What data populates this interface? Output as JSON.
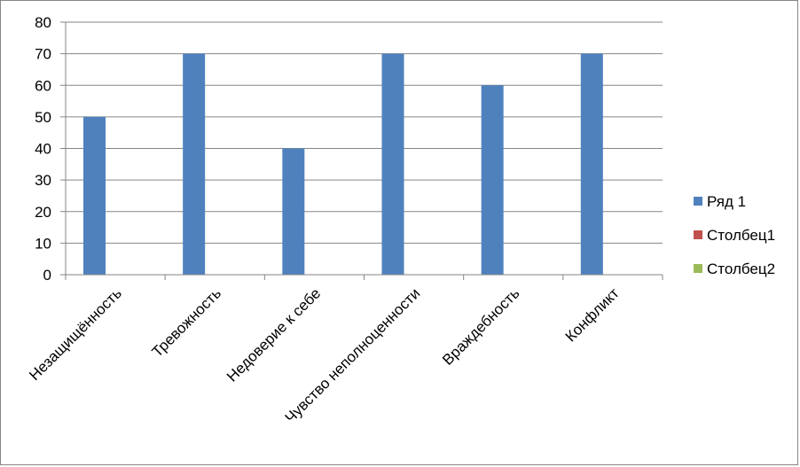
{
  "chart_data": {
    "type": "bar",
    "categories": [
      "Незащищённость",
      "Тревожность",
      "Недоверие к себе",
      "Чувство неполноценности",
      "Враждебность",
      "Конфликт"
    ],
    "series": [
      {
        "name": "Ряд 1",
        "color": "#4f81bd",
        "values": [
          50,
          70,
          40,
          70,
          60,
          70
        ]
      },
      {
        "name": "Столбец1",
        "color": "#c0504d",
        "values": [
          null,
          null,
          null,
          null,
          null,
          null
        ]
      },
      {
        "name": "Столбец2",
        "color": "#9bbb59",
        "values": [
          null,
          null,
          null,
          null,
          null,
          null
        ]
      }
    ],
    "yticks": [
      "0",
      "10",
      "20",
      "30",
      "40",
      "50",
      "60",
      "70",
      "80"
    ],
    "ylim": [
      0,
      80
    ],
    "grid": true,
    "legend": "right",
    "gridline_color": "#868686",
    "axis_color": "#868686"
  }
}
